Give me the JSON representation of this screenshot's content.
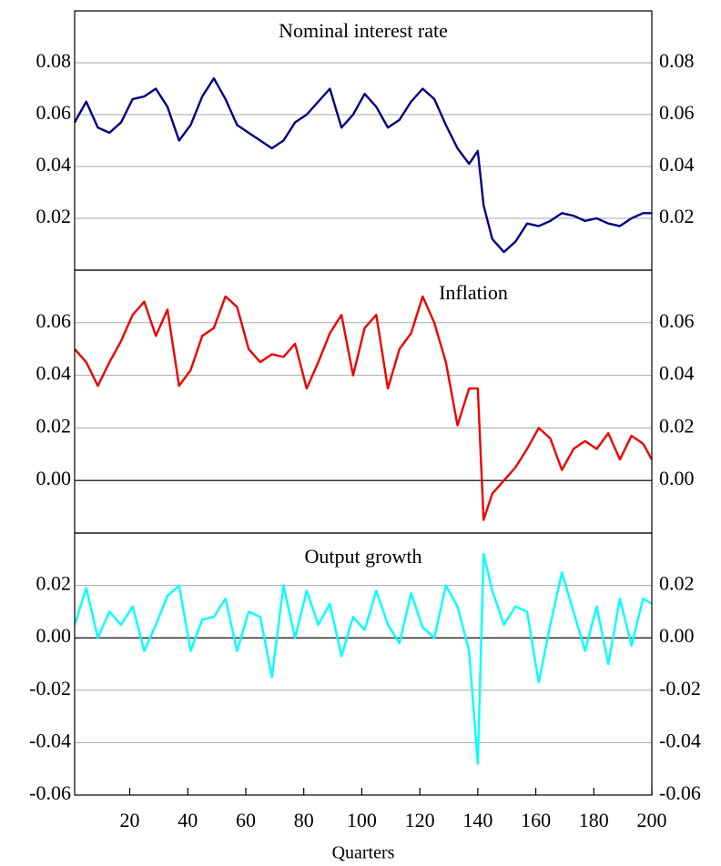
{
  "chart_data": [
    {
      "type": "line",
      "title": "Nominal interest rate",
      "color": "#000080",
      "x": [
        1,
        5,
        9,
        13,
        17,
        21,
        25,
        29,
        33,
        37,
        41,
        45,
        49,
        53,
        57,
        61,
        65,
        69,
        73,
        77,
        81,
        85,
        89,
        93,
        97,
        101,
        105,
        109,
        113,
        117,
        121,
        125,
        129,
        133,
        137,
        140,
        142,
        145,
        149,
        153,
        157,
        161,
        165,
        169,
        173,
        177,
        181,
        185,
        189,
        193,
        197,
        200
      ],
      "values": [
        0.057,
        0.065,
        0.055,
        0.053,
        0.057,
        0.066,
        0.067,
        0.07,
        0.063,
        0.05,
        0.056,
        0.067,
        0.074,
        0.066,
        0.056,
        0.053,
        0.05,
        0.047,
        0.05,
        0.057,
        0.06,
        0.065,
        0.07,
        0.055,
        0.06,
        0.068,
        0.063,
        0.055,
        0.058,
        0.065,
        0.07,
        0.066,
        0.056,
        0.047,
        0.041,
        0.046,
        0.025,
        0.012,
        0.007,
        0.011,
        0.018,
        0.017,
        0.019,
        0.022,
        0.021,
        0.019,
        0.02,
        0.018,
        0.017,
        0.02,
        0.022,
        0.022
      ],
      "xlim": [
        1,
        200
      ],
      "ylim": [
        0,
        0.1
      ],
      "yticks": [
        0.02,
        0.04,
        0.06,
        0.08
      ],
      "grid": true,
      "zero_line": false
    },
    {
      "type": "line",
      "title": "Inflation",
      "color": "#ee0000",
      "x": [
        1,
        5,
        9,
        13,
        17,
        21,
        25,
        29,
        33,
        37,
        41,
        45,
        49,
        53,
        57,
        61,
        65,
        69,
        73,
        77,
        81,
        85,
        89,
        93,
        97,
        101,
        105,
        109,
        113,
        117,
        121,
        125,
        129,
        133,
        137,
        140,
        142,
        145,
        149,
        153,
        157,
        161,
        165,
        169,
        173,
        177,
        181,
        185,
        189,
        193,
        197,
        200
      ],
      "values": [
        0.05,
        0.045,
        0.036,
        0.045,
        0.053,
        0.063,
        0.068,
        0.055,
        0.065,
        0.036,
        0.042,
        0.055,
        0.058,
        0.07,
        0.066,
        0.05,
        0.045,
        0.048,
        0.047,
        0.052,
        0.035,
        0.045,
        0.056,
        0.063,
        0.04,
        0.058,
        0.063,
        0.035,
        0.05,
        0.056,
        0.07,
        0.06,
        0.045,
        0.021,
        0.035,
        0.035,
        -0.015,
        -0.005,
        0.0,
        0.005,
        0.012,
        0.02,
        0.016,
        0.004,
        0.012,
        0.015,
        0.012,
        0.018,
        0.008,
        0.017,
        0.014,
        0.008
      ],
      "xlim": [
        1,
        200
      ],
      "ylim": [
        -0.02,
        0.08
      ],
      "yticks": [
        {
          "value": 0,
          "label": "0.00"
        },
        0.02,
        0.04,
        0.06
      ],
      "grid": true,
      "zero_line": true
    },
    {
      "type": "line",
      "title": "Output growth",
      "color": "#00ffff",
      "x": [
        1,
        5,
        9,
        13,
        17,
        21,
        25,
        29,
        33,
        37,
        41,
        45,
        49,
        53,
        57,
        61,
        65,
        69,
        73,
        77,
        81,
        85,
        89,
        93,
        97,
        101,
        105,
        109,
        113,
        117,
        121,
        125,
        129,
        133,
        137,
        140,
        142,
        145,
        149,
        153,
        157,
        161,
        165,
        169,
        173,
        177,
        181,
        185,
        189,
        193,
        197,
        200
      ],
      "values": [
        0.005,
        0.019,
        0.0,
        0.01,
        0.005,
        0.012,
        -0.005,
        0.005,
        0.016,
        0.02,
        -0.005,
        0.007,
        0.008,
        0.015,
        -0.005,
        0.01,
        0.008,
        -0.015,
        0.02,
        0.0,
        0.018,
        0.005,
        0.013,
        -0.007,
        0.008,
        0.003,
        0.018,
        0.005,
        -0.002,
        0.017,
        0.004,
        0.0,
        0.02,
        0.012,
        -0.005,
        -0.048,
        0.032,
        0.018,
        0.005,
        0.012,
        0.01,
        -0.017,
        0.005,
        0.025,
        0.01,
        -0.005,
        0.012,
        -0.01,
        0.015,
        -0.003,
        0.015,
        0.013
      ],
      "xlim": [
        1,
        200
      ],
      "ylim": [
        -0.06,
        0.04
      ],
      "yticks": [
        -0.06,
        -0.04,
        -0.02,
        {
          "value": 0,
          "label": "0.00"
        },
        0.02
      ],
      "grid": true,
      "zero_line": true,
      "xticks": [
        20,
        40,
        60,
        80,
        100,
        120,
        140,
        160,
        180,
        200
      ],
      "xlabel": "Quarters"
    }
  ]
}
